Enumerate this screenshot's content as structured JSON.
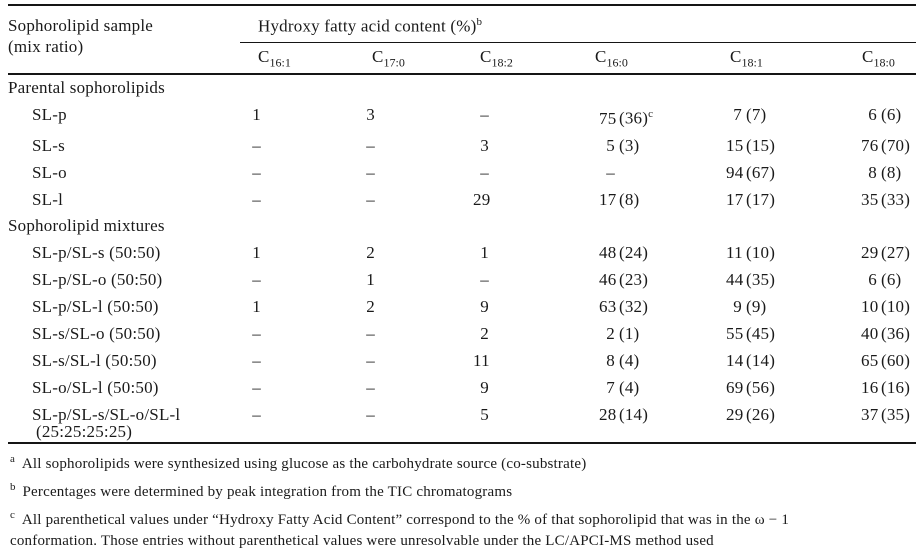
{
  "colors": {
    "text": "#1a1a1a",
    "rule": "#151515",
    "background": "#ffffff"
  },
  "header": {
    "sample_col_line1": "Sophorolipid sample",
    "sample_col_line2": "(mix ratio)",
    "group_title": "Hydroxy fatty acid content (%)",
    "group_title_footnote_mark": "b",
    "columns": [
      {
        "base": "C",
        "sub": "16:1"
      },
      {
        "base": "C",
        "sub": "17:0"
      },
      {
        "base": "C",
        "sub": "18:2"
      },
      {
        "base": "C",
        "sub": "16:0"
      },
      {
        "base": "C",
        "sub": "18:1"
      },
      {
        "base": "C",
        "sub": "18:0"
      }
    ]
  },
  "table": {
    "sections": [
      {
        "label": "Parental sophorolipids",
        "rows": [
          {
            "sample": "SL-p",
            "values": [
              "1",
              "3",
              "–",
              "75 (36)^c",
              "7 (7)",
              "6 (6)"
            ]
          },
          {
            "sample": "SL-s",
            "values": [
              "–",
              "–",
              "3",
              "5 (3)",
              "15 (15)",
              "76 (70)"
            ]
          },
          {
            "sample": "SL-o",
            "values": [
              "–",
              "–",
              "–",
              "–",
              "94 (67)",
              "8 (8)"
            ]
          },
          {
            "sample": "SL-l",
            "values": [
              "–",
              "–",
              "29",
              "17 (8)",
              "17 (17)",
              "35 (33)"
            ]
          }
        ]
      },
      {
        "label": "Sophorolipid mixtures",
        "rows": [
          {
            "sample": "SL-p/SL-s (50:50)",
            "values": [
              "1",
              "2",
              "1",
              "48 (24)",
              "11 (10)",
              "29 (27)"
            ]
          },
          {
            "sample": "SL-p/SL-o (50:50)",
            "values": [
              "–",
              "1",
              "–",
              "46 (23)",
              "44 (35)",
              "6 (6)"
            ]
          },
          {
            "sample": "SL-p/SL-l (50:50)",
            "values": [
              "1",
              "2",
              "9",
              "63 (32)",
              "9 (9)",
              "10 (10)"
            ]
          },
          {
            "sample": "SL-s/SL-o (50:50)",
            "values": [
              "–",
              "–",
              "2",
              "2 (1)",
              "55 (45)",
              "40 (36)"
            ]
          },
          {
            "sample": "SL-s/SL-l (50:50)",
            "values": [
              "–",
              "–",
              "11",
              "8 (4)",
              "14 (14)",
              "65 (60)"
            ]
          },
          {
            "sample": "SL-o/SL-l (50:50)",
            "values": [
              "–",
              "–",
              "9",
              "7 (4)",
              "69 (56)",
              "16 (16)"
            ]
          },
          {
            "sample": "SL-p/SL-s/SL-o/SL-l",
            "sample2": "(25:25:25:25)",
            "values": [
              "–",
              "–",
              "5",
              "28 (14)",
              "29 (26)",
              "37 (35)"
            ]
          }
        ]
      }
    ]
  },
  "footnotes": [
    {
      "mark": "a",
      "text": "All sophorolipids were synthesized using glucose as the carbohydrate source (co-substrate)"
    },
    {
      "mark": "b",
      "text": "Percentages were determined by peak integration from the TIC chromatograms"
    },
    {
      "mark": "c",
      "text": "All parenthetical values under “Hydroxy Fatty Acid Content” correspond to the % of that sophorolipid that was in the ω − 1\nconformation. Those entries without parenthetical values were unresolvable under the LC/APCI-MS method used"
    }
  ]
}
